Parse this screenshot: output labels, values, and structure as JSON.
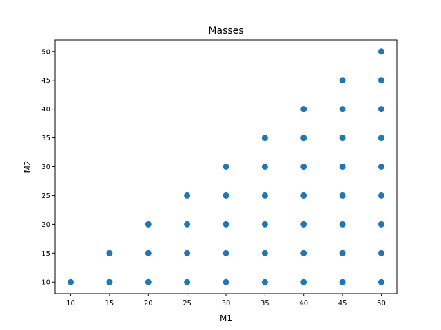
{
  "chart_data": {
    "type": "scatter",
    "title": "Masses",
    "xlabel": "M1",
    "ylabel": "M2",
    "xlim": [
      8,
      52
    ],
    "ylim": [
      8,
      52
    ],
    "xticks": [
      10,
      15,
      20,
      25,
      30,
      35,
      40,
      45,
      50
    ],
    "yticks": [
      10,
      15,
      20,
      25,
      30,
      35,
      40,
      45,
      50
    ],
    "grid": false,
    "marker_color": "#1f77b4",
    "points": [
      {
        "x": 10,
        "y": 10
      },
      {
        "x": 15,
        "y": 10
      },
      {
        "x": 15,
        "y": 15
      },
      {
        "x": 20,
        "y": 10
      },
      {
        "x": 20,
        "y": 15
      },
      {
        "x": 20,
        "y": 20
      },
      {
        "x": 25,
        "y": 10
      },
      {
        "x": 25,
        "y": 15
      },
      {
        "x": 25,
        "y": 20
      },
      {
        "x": 25,
        "y": 25
      },
      {
        "x": 30,
        "y": 10
      },
      {
        "x": 30,
        "y": 15
      },
      {
        "x": 30,
        "y": 20
      },
      {
        "x": 30,
        "y": 25
      },
      {
        "x": 30,
        "y": 30
      },
      {
        "x": 35,
        "y": 10
      },
      {
        "x": 35,
        "y": 15
      },
      {
        "x": 35,
        "y": 20
      },
      {
        "x": 35,
        "y": 25
      },
      {
        "x": 35,
        "y": 30
      },
      {
        "x": 35,
        "y": 35
      },
      {
        "x": 40,
        "y": 10
      },
      {
        "x": 40,
        "y": 15
      },
      {
        "x": 40,
        "y": 20
      },
      {
        "x": 40,
        "y": 25
      },
      {
        "x": 40,
        "y": 30
      },
      {
        "x": 40,
        "y": 35
      },
      {
        "x": 40,
        "y": 40
      },
      {
        "x": 45,
        "y": 10
      },
      {
        "x": 45,
        "y": 15
      },
      {
        "x": 45,
        "y": 20
      },
      {
        "x": 45,
        "y": 25
      },
      {
        "x": 45,
        "y": 30
      },
      {
        "x": 45,
        "y": 35
      },
      {
        "x": 45,
        "y": 40
      },
      {
        "x": 45,
        "y": 45
      },
      {
        "x": 50,
        "y": 10
      },
      {
        "x": 50,
        "y": 15
      },
      {
        "x": 50,
        "y": 20
      },
      {
        "x": 50,
        "y": 25
      },
      {
        "x": 50,
        "y": 30
      },
      {
        "x": 50,
        "y": 35
      },
      {
        "x": 50,
        "y": 40
      },
      {
        "x": 50,
        "y": 45
      },
      {
        "x": 50,
        "y": 50
      }
    ]
  }
}
